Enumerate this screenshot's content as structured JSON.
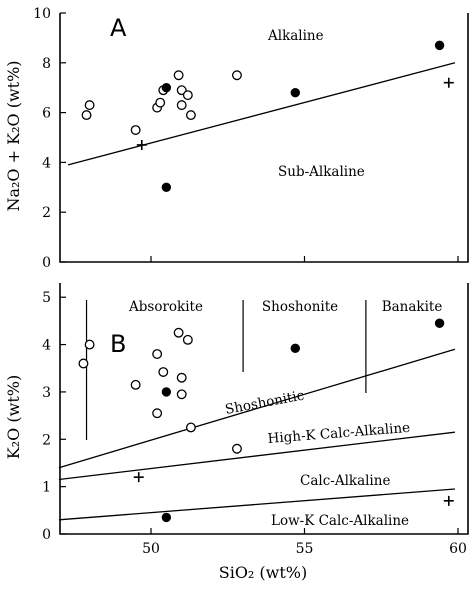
{
  "chart_data": [
    {
      "type": "scatter",
      "panel": "A",
      "xlabel": "SiO₂ (wt%)",
      "ylabel": "Na₂O + K₂O (wt%)",
      "xlim": [
        47,
        60
      ],
      "ylim": [
        0,
        10
      ],
      "yticks": [
        0,
        2,
        4,
        6,
        8,
        10
      ],
      "xticks": [
        50,
        55,
        60
      ],
      "xticklabels_shown": false,
      "fields": [
        "Alkaline",
        "Sub-Alkaline"
      ],
      "boundary_lines": [
        {
          "x": [
            47.3,
            59.9
          ],
          "y": [
            3.9,
            8.0
          ]
        }
      ],
      "series": [
        {
          "marker": "open-circle",
          "points": [
            [
              47.9,
              5.9
            ],
            [
              48.0,
              6.3
            ],
            [
              49.5,
              5.3
            ],
            [
              50.2,
              6.2
            ],
            [
              50.3,
              6.4
            ],
            [
              50.4,
              6.9
            ],
            [
              50.9,
              7.5
            ],
            [
              51.0,
              6.9
            ],
            [
              51.0,
              6.3
            ],
            [
              51.2,
              6.7
            ],
            [
              51.3,
              5.9
            ],
            [
              52.8,
              7.5
            ]
          ]
        },
        {
          "marker": "filled-circle",
          "points": [
            [
              50.5,
              7.0
            ],
            [
              50.5,
              3.0
            ],
            [
              54.7,
              6.8
            ],
            [
              59.4,
              8.7
            ]
          ]
        },
        {
          "marker": "cross",
          "points": [
            [
              49.7,
              4.7
            ],
            [
              59.7,
              7.2
            ]
          ]
        }
      ]
    },
    {
      "type": "scatter",
      "panel": "B",
      "xlabel": "SiO₂ (wt%)",
      "ylabel": "K₂O (wt%)",
      "xlim": [
        47,
        60
      ],
      "ylim": [
        0,
        5.3
      ],
      "yticks": [
        0,
        1,
        2,
        3,
        4,
        5
      ],
      "xticks": [
        50,
        55,
        60
      ],
      "fields": [
        "Absorokite",
        "Shoshonite",
        "Banakite"
      ],
      "field_dividers_x": [
        47.9,
        53.0,
        57.0
      ],
      "boundary_lines": [
        {
          "label": "Shoshonitic",
          "x": [
            47.0,
            59.9
          ],
          "y": [
            1.4,
            3.9
          ]
        },
        {
          "label": "High-K Calc-Alkaline",
          "x": [
            47.0,
            59.9
          ],
          "y": [
            1.15,
            2.15
          ]
        },
        {
          "label": "Calc-Alkaline",
          "x": [
            47.0,
            59.9
          ],
          "y": [
            0.3,
            0.95
          ]
        }
      ],
      "line_labels": [
        "Shoshonitic",
        "High-K Calc-Alkaline",
        "Calc-Alkaline",
        "Low-K Calc-Alkaline"
      ],
      "series": [
        {
          "marker": "open-circle",
          "points": [
            [
              47.8,
              3.6
            ],
            [
              48.0,
              4.0
            ],
            [
              49.5,
              3.15
            ],
            [
              50.2,
              3.8
            ],
            [
              50.2,
              2.55
            ],
            [
              50.4,
              3.42
            ],
            [
              50.9,
              4.25
            ],
            [
              51.0,
              3.3
            ],
            [
              51.0,
              2.95
            ],
            [
              51.2,
              4.1
            ],
            [
              51.3,
              2.25
            ],
            [
              52.8,
              1.8
            ]
          ]
        },
        {
          "marker": "filled-circle",
          "points": [
            [
              50.5,
              3.0
            ],
            [
              50.5,
              0.35
            ],
            [
              54.7,
              3.92
            ],
            [
              59.4,
              4.45
            ]
          ]
        },
        {
          "marker": "cross",
          "points": [
            [
              49.6,
              1.2
            ],
            [
              59.7,
              0.7
            ]
          ]
        }
      ]
    }
  ]
}
